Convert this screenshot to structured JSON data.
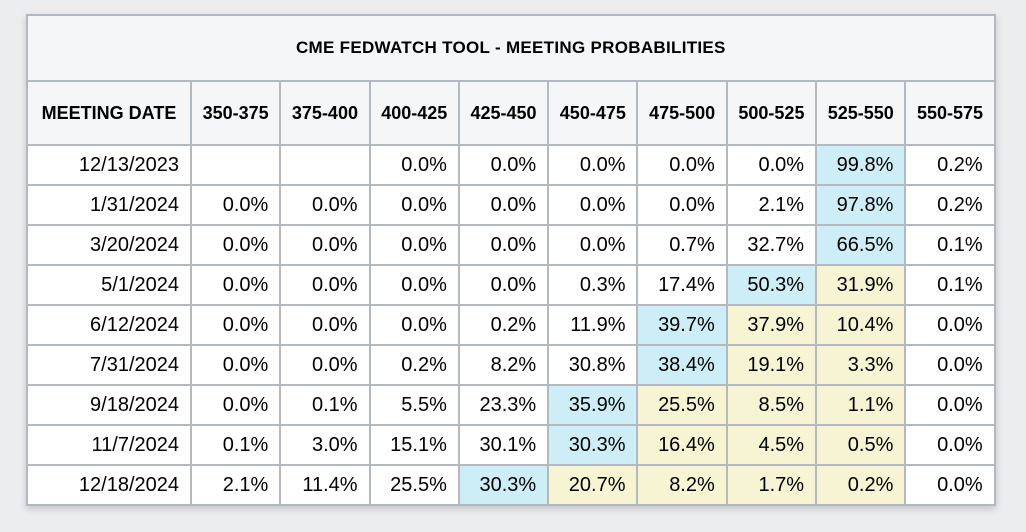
{
  "title": "CME FEDWATCH TOOL - MEETING PROBABILITIES",
  "colors": {
    "page_bg": "#ecedef",
    "header_bg": "#f5f6f7",
    "border": "#b4b8bf",
    "highlight_blue": "#cdeef6",
    "highlight_yellow": "#f6f4d3"
  },
  "chart_data": {
    "type": "table",
    "title": "CME FEDWATCH TOOL - MEETING PROBABILITIES",
    "columns": [
      "MEETING DATE",
      "350-375",
      "375-400",
      "400-425",
      "425-450",
      "450-475",
      "475-500",
      "500-525",
      "525-550",
      "550-575"
    ],
    "rows": [
      {
        "date": "12/13/2023",
        "values": [
          "",
          "",
          "0.0%",
          "0.0%",
          "0.0%",
          "0.0%",
          "0.0%",
          "99.8%",
          "0.2%"
        ],
        "highlights": [
          "",
          "",
          "",
          "",
          "",
          "",
          "",
          "blue",
          ""
        ]
      },
      {
        "date": "1/31/2024",
        "values": [
          "0.0%",
          "0.0%",
          "0.0%",
          "0.0%",
          "0.0%",
          "0.0%",
          "2.1%",
          "97.8%",
          "0.2%"
        ],
        "highlights": [
          "",
          "",
          "",
          "",
          "",
          "",
          "",
          "blue",
          ""
        ]
      },
      {
        "date": "3/20/2024",
        "values": [
          "0.0%",
          "0.0%",
          "0.0%",
          "0.0%",
          "0.0%",
          "0.7%",
          "32.7%",
          "66.5%",
          "0.1%"
        ],
        "highlights": [
          "",
          "",
          "",
          "",
          "",
          "",
          "",
          "blue",
          ""
        ]
      },
      {
        "date": "5/1/2024",
        "values": [
          "0.0%",
          "0.0%",
          "0.0%",
          "0.0%",
          "0.3%",
          "17.4%",
          "50.3%",
          "31.9%",
          "0.1%"
        ],
        "highlights": [
          "",
          "",
          "",
          "",
          "",
          "",
          "blue",
          "yellow",
          ""
        ]
      },
      {
        "date": "6/12/2024",
        "values": [
          "0.0%",
          "0.0%",
          "0.0%",
          "0.2%",
          "11.9%",
          "39.7%",
          "37.9%",
          "10.4%",
          "0.0%"
        ],
        "highlights": [
          "",
          "",
          "",
          "",
          "",
          "blue",
          "yellow",
          "yellow",
          ""
        ]
      },
      {
        "date": "7/31/2024",
        "values": [
          "0.0%",
          "0.0%",
          "0.2%",
          "8.2%",
          "30.8%",
          "38.4%",
          "19.1%",
          "3.3%",
          "0.0%"
        ],
        "highlights": [
          "",
          "",
          "",
          "",
          "",
          "blue",
          "yellow",
          "yellow",
          ""
        ]
      },
      {
        "date": "9/18/2024",
        "values": [
          "0.0%",
          "0.1%",
          "5.5%",
          "23.3%",
          "35.9%",
          "25.5%",
          "8.5%",
          "1.1%",
          "0.0%"
        ],
        "highlights": [
          "",
          "",
          "",
          "",
          "blue",
          "yellow",
          "yellow",
          "yellow",
          ""
        ]
      },
      {
        "date": "11/7/2024",
        "values": [
          "0.1%",
          "3.0%",
          "15.1%",
          "30.1%",
          "30.3%",
          "16.4%",
          "4.5%",
          "0.5%",
          "0.0%"
        ],
        "highlights": [
          "",
          "",
          "",
          "",
          "blue",
          "yellow",
          "yellow",
          "yellow",
          ""
        ]
      },
      {
        "date": "12/18/2024",
        "values": [
          "2.1%",
          "11.4%",
          "25.5%",
          "30.3%",
          "20.7%",
          "8.2%",
          "1.7%",
          "0.2%",
          "0.0%"
        ],
        "highlights": [
          "",
          "",
          "",
          "blue",
          "yellow",
          "yellow",
          "yellow",
          "yellow",
          ""
        ]
      }
    ]
  }
}
